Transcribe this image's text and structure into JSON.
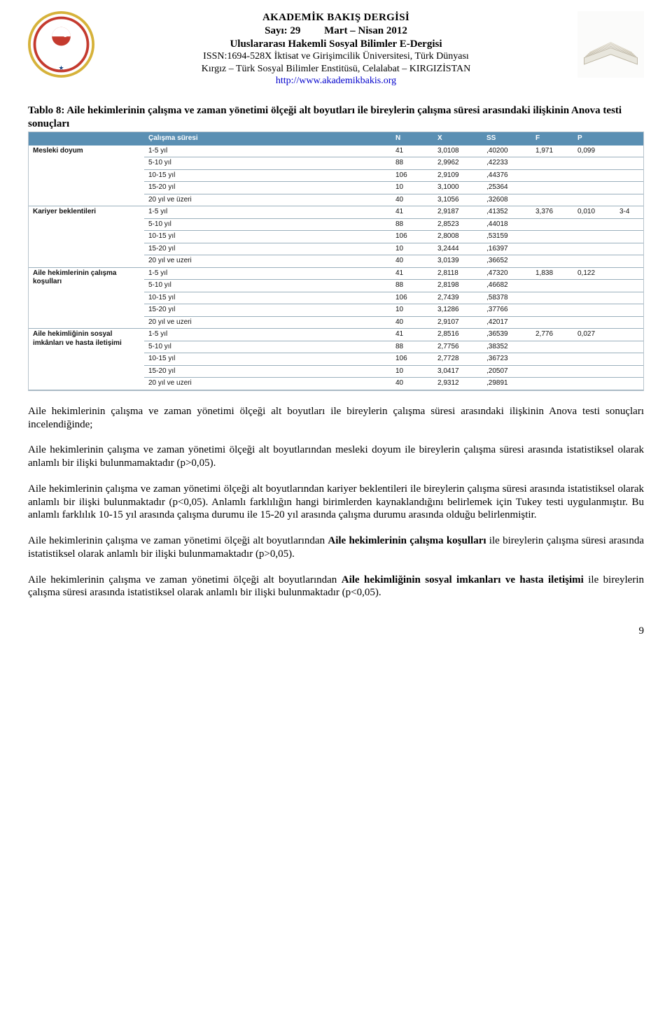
{
  "header": {
    "line1": "AKADEMİK BAKIŞ DERGİSİ",
    "line2_left": "Sayı: 29",
    "line2_right": "Mart – Nisan 2012",
    "line3": "Uluslararası Hakemli Sosyal Bilimler E-Dergisi",
    "line4": "ISSN:1694-528X İktisat ve Girişimcilik Üniversitesi, Türk Dünyası",
    "line5": "Kırgız – Türk Sosyal Bilimler Enstitüsü, Celalabat – KIRGIZİSTAN",
    "link": "http://www.akademikbakis.org"
  },
  "table_caption": "Tablo 8: Aile hekimlerinin çalışma ve zaman yönetimi ölçeği alt boyutları ile bireylerin çalışma süresi arasındaki ilişkinin Anova testi sonuçları",
  "table": {
    "header_bg": "#5a8fb3",
    "header_fg": "#ffffff",
    "grid_color": "#9bb0bd",
    "outer_border": "#b7c3cc",
    "font": "Arial",
    "font_size_pt": 8,
    "columns": [
      "",
      "Çalışma süresi",
      "N",
      "X",
      "SS",
      "F",
      "P",
      ""
    ],
    "groups": [
      {
        "label": "Mesleki doyum",
        "F": "1,971",
        "P": "0,099",
        "extra": "",
        "rows": [
          {
            "range": "1-5 yıl",
            "N": "41",
            "X": "3,0108",
            "SS": ",40200"
          },
          {
            "range": "5-10 yıl",
            "N": "88",
            "X": "2,9962",
            "SS": ",42233"
          },
          {
            "range": "10-15 yıl",
            "N": "106",
            "X": "2,9109",
            "SS": ",44376"
          },
          {
            "range": "15-20 yıl",
            "N": "10",
            "X": "3,1000",
            "SS": ",25364"
          },
          {
            "range": "20 yıl ve üzeri",
            "N": "40",
            "X": "3,1056",
            "SS": ",32608"
          }
        ]
      },
      {
        "label": "Kariyer beklentileri",
        "F": "3,376",
        "P": "0,010",
        "extra": "3-4",
        "rows": [
          {
            "range": "1-5 yıl",
            "N": "41",
            "X": "2,9187",
            "SS": ",41352"
          },
          {
            "range": "5-10 yıl",
            "N": "88",
            "X": "2,8523",
            "SS": ",44018"
          },
          {
            "range": "10-15 yıl",
            "N": "106",
            "X": "2,8008",
            "SS": ",53159"
          },
          {
            "range": "15-20 yıl",
            "N": "10",
            "X": "3,2444",
            "SS": ",16397"
          },
          {
            "range": "20 yıl ve uzeri",
            "N": "40",
            "X": "3,0139",
            "SS": ",36652"
          }
        ]
      },
      {
        "label": "Aile hekimlerinin çalışma koşulları",
        "F": "1,838",
        "P": "0,122",
        "extra": "",
        "rows": [
          {
            "range": "1-5 yıl",
            "N": "41",
            "X": "2,8118",
            "SS": ",47320"
          },
          {
            "range": "5-10 yıl",
            "N": "88",
            "X": "2,8198",
            "SS": ",46682"
          },
          {
            "range": "10-15 yıl",
            "N": "106",
            "X": "2,7439",
            "SS": ",58378"
          },
          {
            "range": "15-20 yıl",
            "N": "10",
            "X": "3,1286",
            "SS": ",37766"
          },
          {
            "range": "20 yıl ve uzeri",
            "N": "40",
            "X": "2,9107",
            "SS": ",42017"
          }
        ]
      },
      {
        "label": "Aile hekimliğinin sosyal imkânları ve hasta iletişimi",
        "F": "2,776",
        "P": "0,027",
        "extra": "",
        "rows": [
          {
            "range": "1-5 yıl",
            "N": "41",
            "X": "2,8516",
            "SS": ",36539"
          },
          {
            "range": "5-10 yıl",
            "N": "88",
            "X": "2,7756",
            "SS": ",38352"
          },
          {
            "range": "10-15 yıl",
            "N": "106",
            "X": "2,7728",
            "SS": ",36723"
          },
          {
            "range": "15-20 yıl",
            "N": "10",
            "X": "3,0417",
            "SS": ",20507"
          },
          {
            "range": "20 yıl ve uzeri",
            "N": "40",
            "X": "2,9312",
            "SS": ",29891"
          }
        ]
      }
    ]
  },
  "paragraphs": {
    "p1": "Aile hekimlerinin çalışma ve zaman yönetimi ölçeği alt boyutları ile bireylerin çalışma süresi arasındaki ilişkinin Anova testi sonuçları incelendiğinde;",
    "p2": "Aile hekimlerinin çalışma ve zaman yönetimi ölçeği alt boyutlarından mesleki doyum ile bireylerin çalışma süresi arasında istatistiksel olarak anlamlı bir ilişki bulunmamaktadır (p>0,05).",
    "p3": "Aile hekimlerinin çalışma ve zaman yönetimi ölçeği alt boyutlarından kariyer beklentileri ile bireylerin çalışma süresi arasında istatistiksel olarak anlamlı bir ilişki bulunmaktadır (p<0,05). Anlamlı farklılığın hangi birimlerden kaynaklandığını belirlemek için Tukey testi uygulanmıştır. Bu anlamlı farklılık 10-15 yıl arasında çalışma durumu ile 15-20 yıl arasında çalışma durumu arasında olduğu belirlenmiştir.",
    "p4_pre": "Aile hekimlerinin çalışma ve zaman yönetimi ölçeği alt boyutlarından ",
    "p4_bold": "Aile hekimlerinin çalışma koşulları",
    "p4_post": " ile bireylerin çalışma süresi arasında istatistiksel olarak anlamlı bir ilişki bulunmamaktadır (p>0,05).",
    "p5_pre": "Aile hekimlerinin çalışma ve zaman yönetimi ölçeği alt boyutlarından ",
    "p5_bold": "Aile hekimliğinin sosyal imkanları ve hasta iletişimi",
    "p5_post": " ile bireylerin çalışma süresi arasında istatistiksel olarak anlamlı bir ilişki bulunmaktadır (p<0,05)."
  },
  "page_number": "9"
}
